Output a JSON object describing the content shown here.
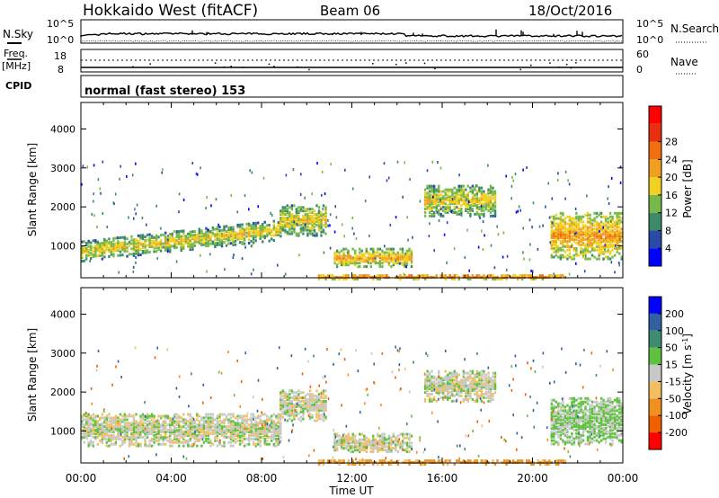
{
  "header": {
    "station": "Hokkaido West (fitACF)",
    "beam": "Beam 06",
    "date": "18/Oct/2016"
  },
  "status_panel": {
    "nsky_label": "N.Sky",
    "nsearch_label": "N.Search",
    "freq_label": "Freq.",
    "freq_unit": "[MHz]",
    "nave_label": "Nave",
    "cpid_label": "CPID",
    "mode_text": "normal (fast stereo) 153",
    "noise_ticks": [
      "10^5",
      "10^0"
    ],
    "freq_ticks": [
      "18",
      "8"
    ],
    "nave_ticks": [
      "60",
      "0"
    ]
  },
  "colors": {
    "power_scale": [
      "#0000ff",
      "#2a4aa8",
      "#3d8a68",
      "#78b84a",
      "#f0d020",
      "#f0a020",
      "#f07010",
      "#e83010",
      "#ff0000"
    ],
    "velocity_scale": [
      "#ff0000",
      "#f06000",
      "#f09020",
      "#f0c060",
      "#c8c8c8",
      "#60c040",
      "#408a70",
      "#3060a0",
      "#0000ff"
    ]
  },
  "chart_data": [
    {
      "type": "heatmap",
      "title": "Power",
      "xlabel": "Time UT",
      "ylabel": "Slant Range [km]",
      "x_ticks": [
        "00:00",
        "04:00",
        "08:00",
        "12:00",
        "16:00",
        "20:00",
        "00:00"
      ],
      "xlim": [
        0,
        24
      ],
      "y_ticks": [
        1000,
        2000,
        3000,
        4000
      ],
      "ylim": [
        180,
        4680
      ],
      "colorbar": {
        "label": "Power [dB]",
        "ticks": [
          4,
          8,
          12,
          16,
          20,
          24,
          28
        ],
        "range": [
          0,
          30
        ]
      },
      "regions": [
        {
          "t0": 0.0,
          "t1": 8.8,
          "r0": 650,
          "r1": 1500,
          "level": 12,
          "note": "main echo band rising with time"
        },
        {
          "t0": 8.8,
          "t1": 10.8,
          "r0": 1300,
          "r1": 2100,
          "level": 12
        },
        {
          "t0": 11.2,
          "t1": 14.6,
          "r0": 500,
          "r1": 950,
          "level": 14
        },
        {
          "t0": 15.2,
          "t1": 18.4,
          "r0": 1800,
          "r1": 2600,
          "level": 12
        },
        {
          "t0": 20.8,
          "t1": 24.0,
          "r0": 700,
          "r1": 1900,
          "level": 15
        },
        {
          "t0": 10.5,
          "t1": 21.5,
          "r0": 180,
          "r1": 300,
          "level": 18,
          "note": "ground scatter near range"
        }
      ]
    },
    {
      "type": "heatmap",
      "title": "Velocity",
      "xlabel": "Time UT",
      "ylabel": "Slant Range [km]",
      "x_ticks": [
        "00:00",
        "04:00",
        "08:00",
        "12:00",
        "16:00",
        "20:00",
        "00:00"
      ],
      "xlim": [
        0,
        24
      ],
      "y_ticks": [
        1000,
        2000,
        3000,
        4000
      ],
      "ylim": [
        180,
        4680
      ],
      "colorbar": {
        "label": "Velocity [m s^-1]",
        "ticks": [
          200,
          100,
          50,
          15,
          -15,
          -50,
          -100,
          -200
        ],
        "range": [
          -250,
          250
        ]
      },
      "regions": [
        {
          "t0": 0.0,
          "t1": 8.8,
          "r0": 650,
          "r1": 1500,
          "velocity": 0
        },
        {
          "t0": 8.8,
          "t1": 10.8,
          "r0": 1300,
          "r1": 2100,
          "velocity": 0
        },
        {
          "t0": 11.2,
          "t1": 14.6,
          "r0": 500,
          "r1": 950,
          "velocity": 0
        },
        {
          "t0": 15.2,
          "t1": 18.4,
          "r0": 1800,
          "r1": 2600,
          "velocity": 0
        },
        {
          "t0": 20.8,
          "t1": 24.0,
          "r0": 700,
          "r1": 1900,
          "velocity": 20
        },
        {
          "t0": 10.5,
          "t1": 21.5,
          "r0": 180,
          "r1": 300,
          "velocity": -60
        }
      ]
    }
  ]
}
